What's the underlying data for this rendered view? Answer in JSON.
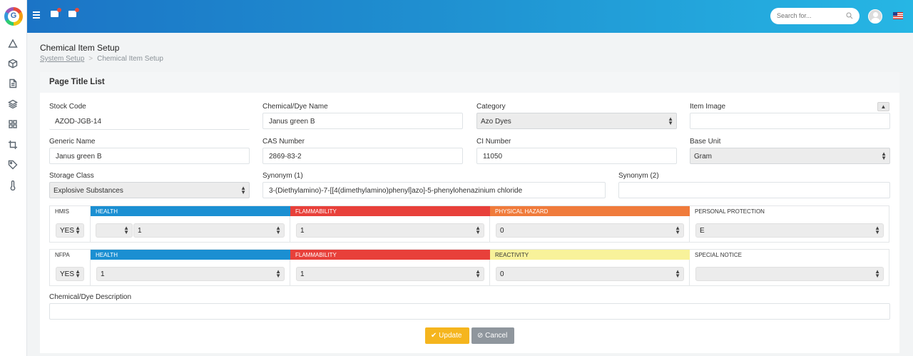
{
  "sidebar": {
    "icons": [
      "triangle-icon",
      "box-icon",
      "document-icon",
      "layers-icon",
      "grid-icon",
      "crop-icon",
      "tag-icon",
      "thermometer-icon"
    ]
  },
  "topbar": {
    "search_placeholder": "Search for...",
    "colors": {
      "gradient_start": "#1b74c6",
      "gradient_end": "#26b6e4"
    }
  },
  "header": {
    "title": "Chemical Item Setup",
    "breadcrumb": [
      "System Setup",
      "Chemical Item Setup"
    ]
  },
  "card": {
    "title": "Page Title List"
  },
  "form": {
    "stock_code": {
      "label": "Stock Code",
      "value": "AZOD-JGB-14"
    },
    "chemical_name": {
      "label": "Chemical/Dye Name",
      "value": "Janus green B"
    },
    "category": {
      "label": "Category",
      "value": "Azo Dyes"
    },
    "item_image": {
      "label": "Item Image",
      "value": ""
    },
    "generic_name": {
      "label": "Generic Name",
      "value": "Janus green B"
    },
    "cas_number": {
      "label": "CAS Number",
      "value": "2869-83-2"
    },
    "ci_number": {
      "label": "CI Number",
      "value": "11050"
    },
    "base_unit": {
      "label": "Base Unit",
      "value": "Gram"
    },
    "storage_class": {
      "label": "Storage Class",
      "value": "Explosive Substances"
    },
    "synonym1": {
      "label": "Synonym (1)",
      "value": "3-(Diethylamino)-7-[[4(dimethylamino)phenyl]azo]-5-phenylohenazinium chloride"
    },
    "synonym2": {
      "label": "Synonym (2)",
      "value": ""
    },
    "description": {
      "label": "Chemical/Dye Description",
      "value": ""
    }
  },
  "hmis": {
    "label": "HMIS",
    "enabled": "YES",
    "headers": {
      "health": "HEALTH",
      "flammability": "FLAMMABILITY",
      "physical_hazard": "PHYSICAL HAZARD",
      "personal_protection": "PERSONAL PROTECTION"
    },
    "values": {
      "health_prefix": "",
      "health": "1",
      "flammability": "1",
      "physical_hazard": "0",
      "personal_protection": "E"
    }
  },
  "nfpa": {
    "label": "NFPA",
    "enabled": "YES",
    "headers": {
      "health": "HEALTH",
      "flammability": "FLAMMABILITY",
      "reactivity": "REACTIVITY",
      "special_notice": "SPECIAL NOTICE"
    },
    "values": {
      "health": "1",
      "flammability": "1",
      "reactivity": "0",
      "special_notice": ""
    }
  },
  "colors": {
    "health": "#1b8fd2",
    "flammability": "#e8403a",
    "physical_hazard": "#f07b3b",
    "reactivity": "#f8f29a",
    "update_button": "#f5b51e",
    "cancel_button": "#8f969d"
  },
  "actions": {
    "update_label": "Update",
    "cancel_label": "Cancel"
  }
}
